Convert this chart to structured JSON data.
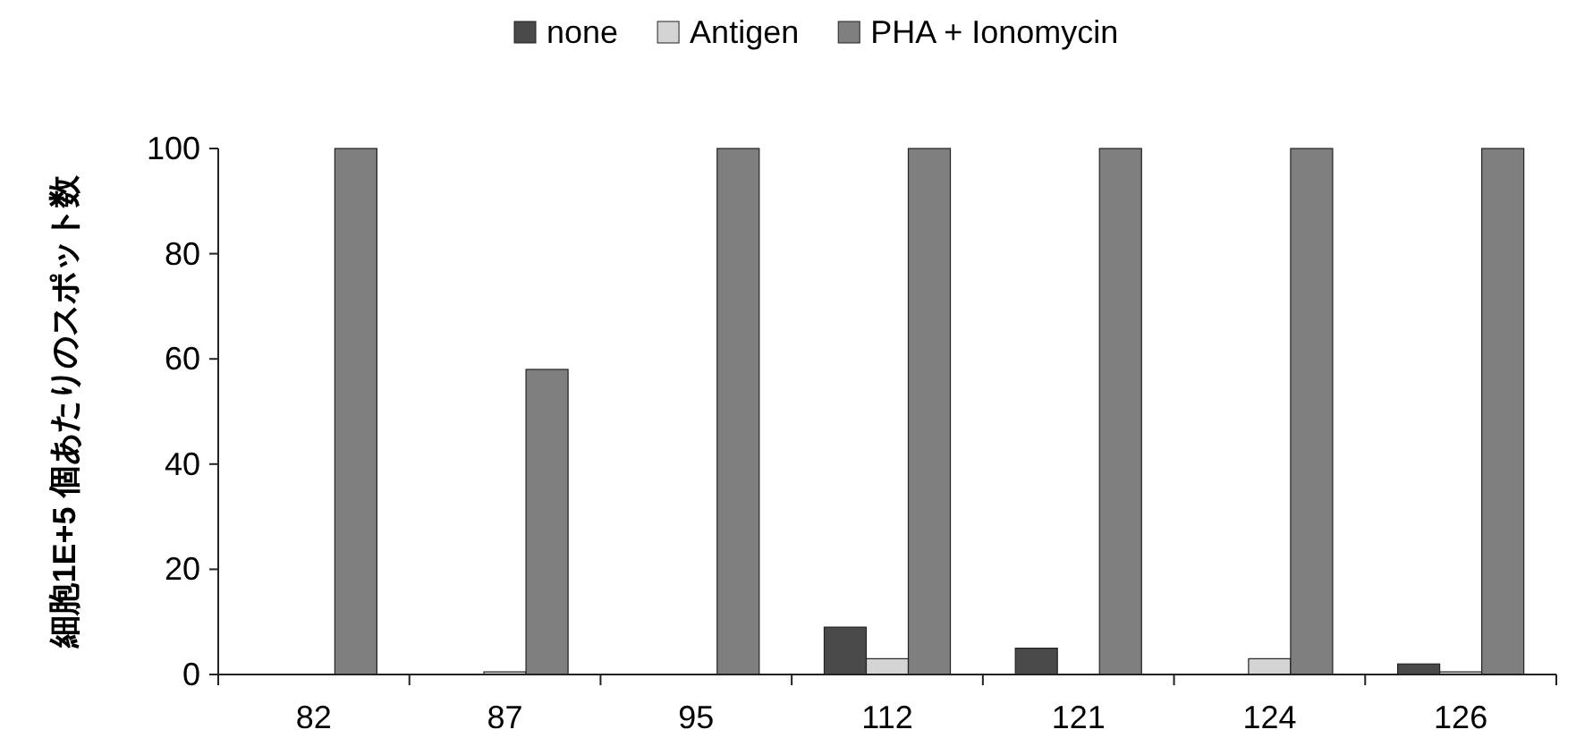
{
  "chart_data": {
    "type": "bar",
    "ylabel": "細胞1E+5 個あたりのスポット数",
    "categories": [
      "82",
      "87",
      "95",
      "112",
      "121",
      "124",
      "126"
    ],
    "series": [
      {
        "name": "none",
        "color": "#4a4a4a",
        "values": [
          0,
          0,
          0,
          9,
          5,
          0,
          2
        ]
      },
      {
        "name": "Antigen",
        "color": "#d4d4d4",
        "values": [
          0,
          0.5,
          0,
          3,
          0,
          3,
          0.5
        ]
      },
      {
        "name": "PHA + Ionomycin",
        "color": "#7f7f7f",
        "values": [
          100,
          58,
          100,
          100,
          100,
          100,
          100
        ]
      }
    ],
    "ylim": [
      0,
      100
    ],
    "yticks": [
      0,
      20,
      40,
      60,
      80,
      100
    ],
    "legend": "top",
    "grid": false
  }
}
